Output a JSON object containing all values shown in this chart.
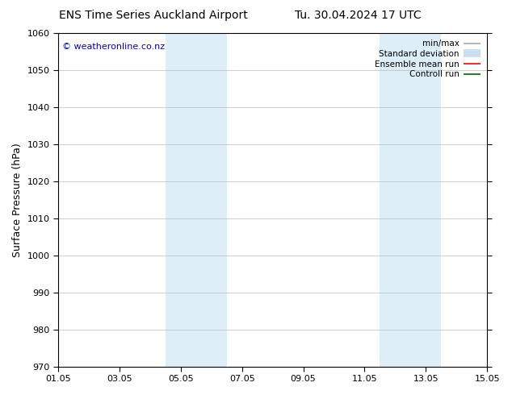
{
  "title_left": "ENS Time Series Auckland Airport",
  "title_right": "Tu. 30.04.2024 17 UTC",
  "ylabel": "Surface Pressure (hPa)",
  "ylim": [
    970,
    1060
  ],
  "yticks": [
    970,
    980,
    990,
    1000,
    1010,
    1020,
    1030,
    1040,
    1050,
    1060
  ],
  "xtick_labels": [
    "01.05",
    "03.05",
    "05.05",
    "07.05",
    "09.05",
    "11.05",
    "13.05",
    "15.05"
  ],
  "xtick_positions": [
    0,
    2,
    4,
    6,
    8,
    10,
    12,
    14
  ],
  "xlim": [
    0,
    14
  ],
  "shaded_bands": [
    {
      "x_start": 3.5,
      "x_end": 5.5,
      "color": "#ddeef8"
    },
    {
      "x_start": 10.5,
      "x_end": 12.5,
      "color": "#ddeef8"
    }
  ],
  "watermark_text": "© weatheronline.co.nz",
  "watermark_color": "#0000cc",
  "legend_entries": [
    {
      "label": "min/max",
      "color": "#aaaaaa",
      "lw": 1.2,
      "style": "solid"
    },
    {
      "label": "Standard deviation",
      "color": "#c8dff0",
      "lw": 7,
      "style": "solid"
    },
    {
      "label": "Ensemble mean run",
      "color": "#ff0000",
      "lw": 1.2,
      "style": "solid"
    },
    {
      "label": "Controll run",
      "color": "#006600",
      "lw": 1.2,
      "style": "solid"
    }
  ],
  "bg_color": "#ffffff",
  "grid_color": "#bbbbbb",
  "title_fontsize": 10,
  "ylabel_fontsize": 9,
  "tick_fontsize": 8,
  "legend_fontsize": 7.5,
  "watermark_fontsize": 8
}
